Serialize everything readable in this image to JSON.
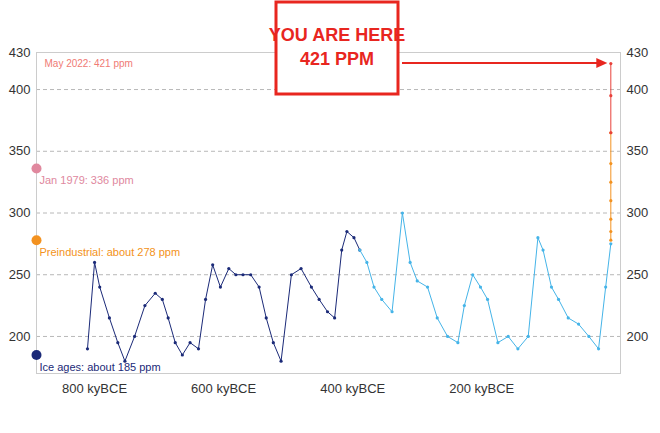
{
  "chart_data": {
    "type": "line",
    "xlim": [
      -890,
      15
    ],
    "xticks": [
      {
        "value": -800,
        "label": "800 kyBCE"
      },
      {
        "value": -600,
        "label": "600 kyBCE"
      },
      {
        "value": -400,
        "label": "400 kyBCE"
      },
      {
        "value": -200,
        "label": "200 kyBCE"
      }
    ],
    "ylim": [
      170,
      430
    ],
    "yticks": [
      200,
      250,
      300,
      350,
      400,
      430
    ],
    "grid": true,
    "series": [
      {
        "color": "#1b2a78",
        "marker": "circle",
        "line_style": "solid",
        "x": [
          -811,
          -800,
          -792,
          -777,
          -764,
          -753,
          -738,
          -722,
          -706,
          -695,
          -686,
          -675,
          -664,
          -652,
          -639,
          -628,
          -617,
          -605,
          -592,
          -581,
          -570,
          -558,
          -545,
          -534,
          -523,
          -511,
          -495,
          -480,
          -464,
          -452,
          -439,
          -428,
          -417,
          -409,
          -398,
          -389
        ],
        "values": [
          190,
          260,
          240,
          215,
          195,
          180,
          200,
          225,
          235,
          230,
          215,
          195,
          185,
          195,
          190,
          230,
          258,
          240,
          255,
          250,
          250,
          250,
          240,
          215,
          195,
          180,
          250,
          255,
          240,
          230,
          220,
          215,
          270,
          285,
          280,
          270
        ]
      },
      {
        "color": "#45b4e8",
        "marker": "circle",
        "line_style": "solid",
        "x": [
          -389,
          -378,
          -367,
          -355,
          -339,
          -323,
          -311,
          -300,
          -284,
          -269,
          -253,
          -237,
          -227,
          -214,
          -202,
          -191,
          -175,
          -159,
          -144,
          -128,
          -113,
          -105,
          -92,
          -81,
          -66,
          -50,
          -34,
          -19,
          -8,
          0
        ],
        "values": [
          270,
          260,
          240,
          230,
          220,
          300,
          260,
          245,
          240,
          215,
          200,
          195,
          225,
          250,
          240,
          230,
          195,
          200,
          190,
          200,
          280,
          270,
          240,
          230,
          215,
          210,
          200,
          190,
          240,
          275
        ]
      },
      {
        "color": "#f39220",
        "marker": "circle",
        "line_style": "solid",
        "x": [
          0,
          0,
          0,
          0,
          0,
          0,
          0
        ],
        "values": [
          278,
          285,
          295,
          310,
          325,
          340,
          365
        ]
      },
      {
        "color": "#e8413a",
        "marker": "circle",
        "line_style": "solid",
        "x": [
          0,
          0,
          0
        ],
        "values": [
          365,
          395,
          421
        ]
      }
    ],
    "annotations": [
      {
        "label": "May 2022: 421 ppm",
        "value": 421,
        "color": "#f07a74",
        "marker": "none"
      },
      {
        "label": "Jan 1979: 336 ppm",
        "value": 336,
        "color": "#e0889e",
        "marker": "circle"
      },
      {
        "label": "Preindustrial: about 278 ppm",
        "value": 278,
        "color": "#f39220",
        "marker": "circle"
      },
      {
        "label": "Ice ages: about 185 ppm",
        "value": 185,
        "color": "#1b2a78",
        "marker": "circle"
      }
    ],
    "callout": {
      "lines": [
        "YOU ARE HERE",
        "421 PPM"
      ],
      "value": 421,
      "color": "#e8261f"
    }
  }
}
